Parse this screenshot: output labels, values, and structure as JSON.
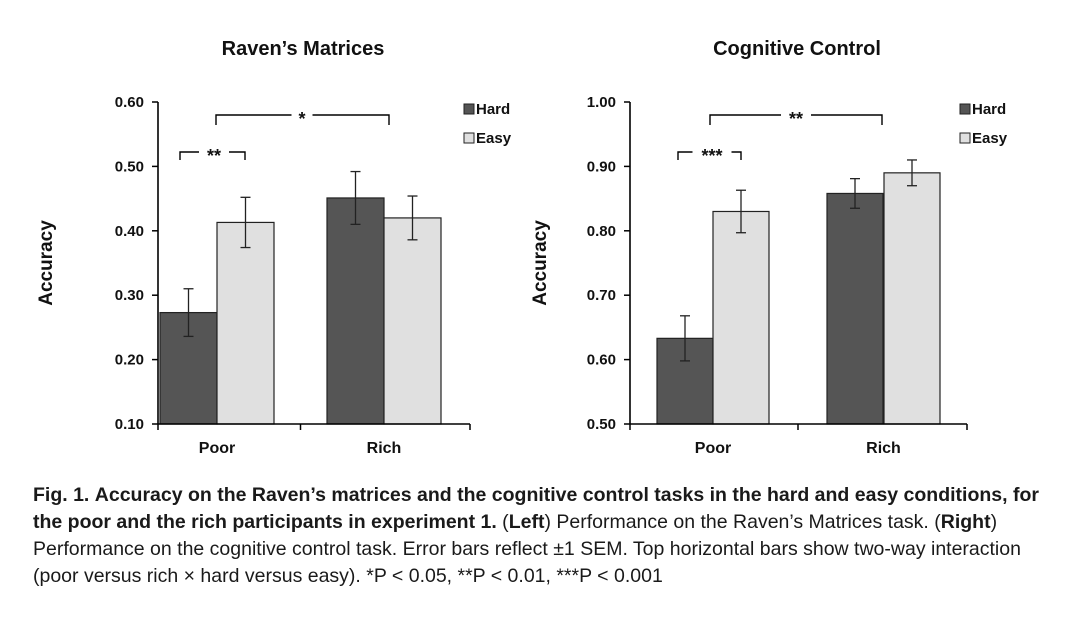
{
  "chart_data": [
    {
      "type": "bar",
      "title": "Raven’s Matrices",
      "ylabel": "Accuracy",
      "xlabel": "",
      "ylim": [
        0.1,
        0.6
      ],
      "yticks": [
        "0.10",
        "0.20",
        "0.30",
        "0.40",
        "0.50",
        "0.60"
      ],
      "categories": [
        "Poor",
        "Rich"
      ],
      "series": [
        {
          "name": "Hard",
          "color": "#555555",
          "values": [
            0.273,
            0.451
          ],
          "errors": [
            0.037,
            0.041
          ]
        },
        {
          "name": "Easy",
          "color": "#e0e0e0",
          "values": [
            0.413,
            0.42
          ],
          "errors": [
            0.039,
            0.034
          ]
        }
      ],
      "legend_position": "top-right",
      "annotations": [
        {
          "type": "bracket",
          "label": "**",
          "scope": "Poor Hard vs Easy"
        },
        {
          "type": "bracket",
          "label": "*",
          "scope": "Poor vs Rich interaction"
        }
      ]
    },
    {
      "type": "bar",
      "title": "Cognitive Control",
      "ylabel": "Accuracy",
      "xlabel": "",
      "ylim": [
        0.5,
        1.0
      ],
      "yticks": [
        "0.50",
        "0.60",
        "0.70",
        "0.80",
        "0.90",
        "1.00"
      ],
      "categories": [
        "Poor",
        "Rich"
      ],
      "series": [
        {
          "name": "Hard",
          "color": "#555555",
          "values": [
            0.633,
            0.858
          ],
          "errors": [
            0.035,
            0.023
          ]
        },
        {
          "name": "Easy",
          "color": "#e0e0e0",
          "values": [
            0.83,
            0.89
          ],
          "errors": [
            0.033,
            0.02
          ]
        }
      ],
      "legend_position": "top-right",
      "annotations": [
        {
          "type": "bracket",
          "label": "***",
          "scope": "Poor Hard vs Easy"
        },
        {
          "type": "bracket",
          "label": "**",
          "scope": "Poor vs Rich interaction"
        }
      ]
    }
  ],
  "caption": {
    "fig_label": "Fig. 1.",
    "title": "Accuracy on the Raven’s matrices and the cognitive control tasks in the hard and easy conditions, for the poor and the rich participants in experiment 1.",
    "left_tag": "Left",
    "left_text": "Performance on the Raven’s Matrices task.",
    "right_tag": "Right",
    "right_text": "Performance on the cognitive control task. Error bars reflect ±1 SEM. Top horizontal bars show two-way interaction (poor versus rich × hard versus easy). *P < 0.05, **P < 0.01, ***P < 0.001"
  }
}
